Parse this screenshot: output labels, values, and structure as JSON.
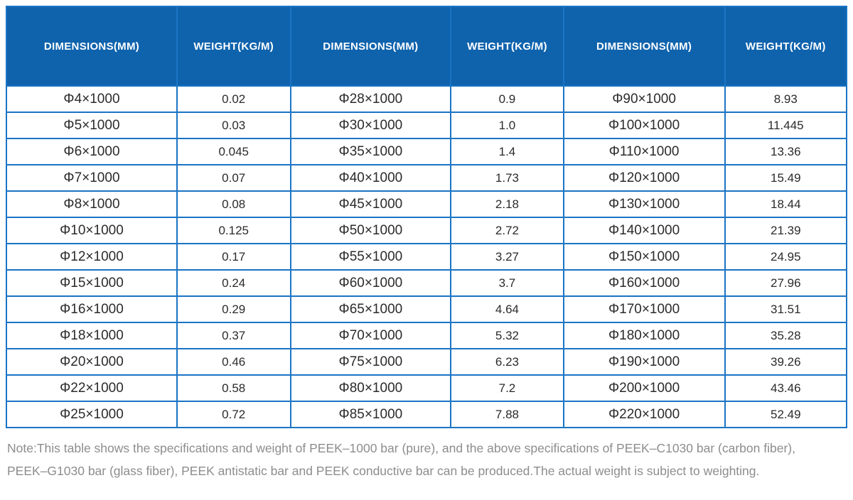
{
  "colors": {
    "header_bg": "#0f63ad",
    "border": "#1b74c4",
    "header_text": "#ffffff",
    "cell_text": "#2b2b2b",
    "note_text": "#8d8d8d"
  },
  "table": {
    "headers": [
      "DIMENSIONS(MM)",
      "WEIGHT(KG/M)",
      "DIMENSIONS(MM)",
      "WEIGHT(KG/M)",
      "DIMENSIONS(MM)",
      "WEIGHT(KG/M)"
    ],
    "rows": [
      [
        "Φ4×1000",
        "0.02",
        "Φ28×1000",
        "0.9",
        "Φ90×1000",
        "8.93"
      ],
      [
        "Φ5×1000",
        "0.03",
        "Φ30×1000",
        "1.0",
        "Φ100×1000",
        "11.445"
      ],
      [
        "Φ6×1000",
        "0.045",
        "Φ35×1000",
        "1.4",
        "Φ110×1000",
        "13.36"
      ],
      [
        "Φ7×1000",
        "0.07",
        "Φ40×1000",
        "1.73",
        "Φ120×1000",
        "15.49"
      ],
      [
        "Φ8×1000",
        "0.08",
        "Φ45×1000",
        "2.18",
        "Φ130×1000",
        "18.44"
      ],
      [
        "Φ10×1000",
        "0.125",
        "Φ50×1000",
        "2.72",
        "Φ140×1000",
        "21.39"
      ],
      [
        "Φ12×1000",
        "0.17",
        "Φ55×1000",
        "3.27",
        "Φ150×1000",
        "24.95"
      ],
      [
        "Φ15×1000",
        "0.24",
        "Φ60×1000",
        "3.7",
        "Φ160×1000",
        "27.96"
      ],
      [
        "Φ16×1000",
        "0.29",
        "Φ65×1000",
        "4.64",
        "Φ170×1000",
        "31.51"
      ],
      [
        "Φ18×1000",
        "0.37",
        "Φ70×1000",
        "5.32",
        "Φ180×1000",
        "35.28"
      ],
      [
        "Φ20×1000",
        "0.46",
        "Φ75×1000",
        "6.23",
        "Φ190×1000",
        "39.26"
      ],
      [
        "Φ22×1000",
        "0.58",
        "Φ80×1000",
        "7.2",
        "Φ200×1000",
        "43.46"
      ],
      [
        "Φ25×1000",
        "0.72",
        "Φ85×1000",
        "7.88",
        "Φ220×1000",
        "52.49"
      ]
    ]
  },
  "note": {
    "line1": "Note:This table shows the specifications and weight of PEEK–1000 bar (pure), and the above specifications of PEEK–C1030 bar (carbon fiber),",
    "line2": "PEEK–G1030 bar (glass fiber), PEEK antistatic bar and PEEK conductive bar can be produced.The actual weight is subject to weighting."
  }
}
